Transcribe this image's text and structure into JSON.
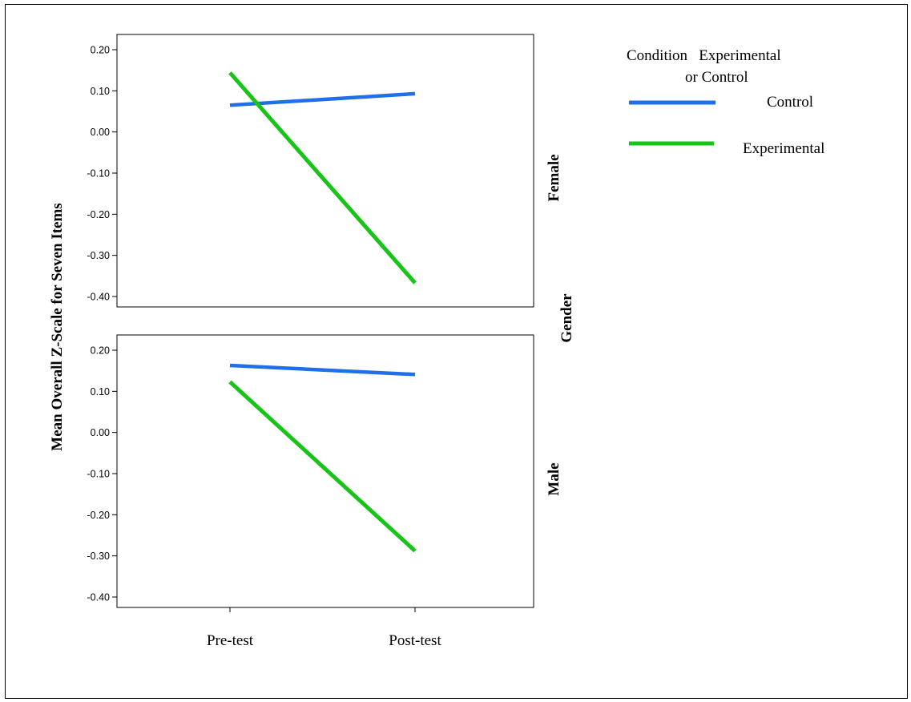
{
  "chart_data": {
    "type": "line",
    "x_categories": [
      "Pre-test",
      "Post-test"
    ],
    "ylabel": "Mean Overall Z-Scale for Seven Items",
    "y_ticks": [
      "0.20",
      "0.10",
      "0.00",
      "-0.10",
      "-0.20",
      "-0.30",
      "-0.40"
    ],
    "ylim": [
      -0.43,
      0.23
    ],
    "row_facet_label": "Gender",
    "legend": {
      "title_line1": "Condition   Experimental",
      "title_line2": "or Control",
      "placement": "top-right",
      "entries": [
        {
          "name": "Control",
          "color": "#1f6fe8"
        },
        {
          "name": "Experimental",
          "color": "#18c418"
        }
      ]
    },
    "panels": [
      {
        "facet": "Female",
        "series": [
          {
            "name": "Control",
            "values": [
              0.065,
              0.093
            ]
          },
          {
            "name": "Experimental",
            "values": [
              0.144,
              -0.367
            ]
          }
        ]
      },
      {
        "facet": "Male",
        "series": [
          {
            "name": "Control",
            "values": [
              0.163,
              0.141
            ]
          },
          {
            "name": "Experimental",
            "values": [
              0.123,
              -0.288
            ]
          }
        ]
      }
    ]
  }
}
